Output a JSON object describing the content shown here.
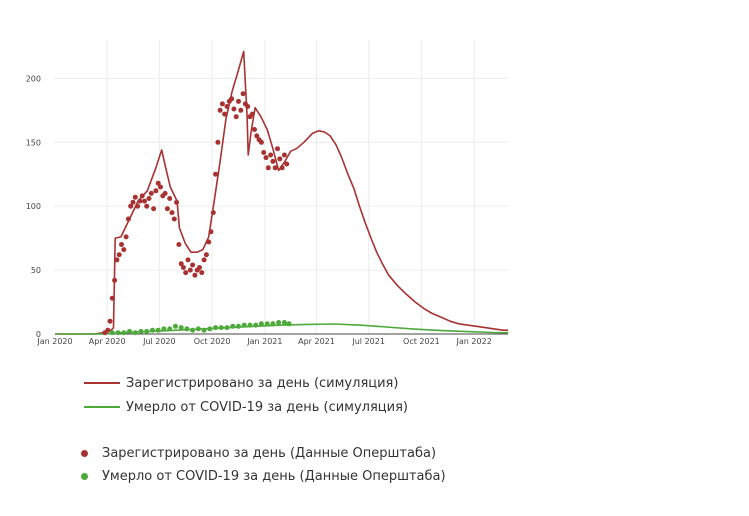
{
  "chart_data": {
    "type": "line",
    "title": "",
    "xlabel": "",
    "ylabel": "",
    "xlim": [
      "2020-01-01",
      "2022-03-01"
    ],
    "ylim": [
      0,
      230
    ],
    "grid": true,
    "legend_position": "bottom",
    "x_ticks": [
      "Jan 2020",
      "Apr 2020",
      "Jul 2020",
      "Oct 2020",
      "Jan 2021",
      "Apr 2021",
      "Jul 2021",
      "Oct 2021",
      "Jan 2022"
    ],
    "y_ticks": [
      "0",
      "50",
      "100",
      "150",
      "200"
    ],
    "series": [
      {
        "name": "Зарегистрировано за день (симуляция)",
        "kind": "line",
        "color": "#a83232",
        "x": [
          "2020-01-01",
          "2020-03-10",
          "2020-03-25",
          "2020-04-08",
          "2020-04-12",
          "2020-04-15",
          "2020-04-25",
          "2020-05-10",
          "2020-05-25",
          "2020-06-10",
          "2020-06-25",
          "2020-07-05",
          "2020-07-12",
          "2020-07-20",
          "2020-08-01",
          "2020-08-05",
          "2020-08-15",
          "2020-08-25",
          "2020-09-05",
          "2020-09-15",
          "2020-09-25",
          "2020-10-05",
          "2020-10-15",
          "2020-10-25",
          "2020-11-05",
          "2020-11-15",
          "2020-11-25",
          "2020-12-01",
          "2020-12-03",
          "2020-12-08",
          "2020-12-15",
          "2020-12-25",
          "2021-01-05",
          "2021-01-15",
          "2021-01-25",
          "2021-02-05",
          "2021-02-15",
          "2021-02-25",
          "2021-03-10",
          "2021-03-25",
          "2021-04-05",
          "2021-04-15",
          "2021-04-25",
          "2021-05-05",
          "2021-05-15",
          "2021-05-25",
          "2021-06-05",
          "2021-06-15",
          "2021-06-25",
          "2021-07-05",
          "2021-07-15",
          "2021-07-25",
          "2021-08-05",
          "2021-08-20",
          "2021-09-05",
          "2021-09-20",
          "2021-10-05",
          "2021-10-20",
          "2021-11-05",
          "2021-11-20",
          "2021-12-05",
          "2021-12-20",
          "2022-01-05",
          "2022-01-20",
          "2022-02-05",
          "2022-02-20",
          "2022-03-01"
        ],
        "y": [
          0,
          0,
          1,
          3,
          5,
          75,
          76,
          90,
          104,
          112,
          130,
          144,
          130,
          115,
          104,
          83,
          71,
          64,
          64,
          66,
          76,
          105,
          135,
          168,
          190,
          205,
          221,
          170,
          140,
          158,
          177,
          170,
          160,
          145,
          128,
          135,
          143,
          145,
          150,
          157,
          159,
          158,
          155,
          148,
          138,
          126,
          114,
          100,
          87,
          75,
          64,
          55,
          46,
          38,
          31,
          25,
          20,
          16,
          13,
          10,
          8,
          7,
          6,
          5,
          4,
          3,
          3
        ]
      },
      {
        "name": "Умерло от COVID-19 за день (симуляция)",
        "kind": "line",
        "color": "#4daa3a",
        "x": [
          "2020-01-01",
          "2020-03-20",
          "2020-05-01",
          "2020-06-15",
          "2020-08-01",
          "2020-09-15",
          "2020-11-01",
          "2020-12-15",
          "2021-02-01",
          "2021-03-15",
          "2021-05-01",
          "2021-06-15",
          "2021-08-01",
          "2021-09-15",
          "2021-11-01",
          "2021-12-15",
          "2022-02-01",
          "2022-03-01"
        ],
        "y": [
          0,
          0,
          1,
          2,
          3,
          4,
          5,
          6,
          7,
          7.5,
          7.8,
          7,
          5.5,
          4,
          2.8,
          2,
          1.2,
          1
        ]
      },
      {
        "name": "Зарегистрировано за день (Данные Оперштаба)",
        "kind": "scatter",
        "color": "#a83232",
        "x": [
          "2020-03-28",
          "2020-04-02",
          "2020-04-06",
          "2020-04-10",
          "2020-04-14",
          "2020-04-18",
          "2020-04-22",
          "2020-04-26",
          "2020-04-30",
          "2020-05-04",
          "2020-05-08",
          "2020-05-12",
          "2020-05-16",
          "2020-05-20",
          "2020-05-24",
          "2020-05-28",
          "2020-06-01",
          "2020-06-05",
          "2020-06-09",
          "2020-06-13",
          "2020-06-17",
          "2020-06-21",
          "2020-06-25",
          "2020-06-29",
          "2020-07-03",
          "2020-07-07",
          "2020-07-11",
          "2020-07-15",
          "2020-07-19",
          "2020-07-23",
          "2020-07-27",
          "2020-07-31",
          "2020-08-04",
          "2020-08-08",
          "2020-08-12",
          "2020-08-16",
          "2020-08-20",
          "2020-08-24",
          "2020-08-28",
          "2020-09-01",
          "2020-09-05",
          "2020-09-09",
          "2020-09-13",
          "2020-09-17",
          "2020-09-21",
          "2020-09-25",
          "2020-09-29",
          "2020-10-03",
          "2020-10-07",
          "2020-10-11",
          "2020-10-15",
          "2020-10-19",
          "2020-10-23",
          "2020-10-27",
          "2020-10-31",
          "2020-11-04",
          "2020-11-08",
          "2020-11-12",
          "2020-11-16",
          "2020-11-20",
          "2020-11-24",
          "2020-11-28",
          "2020-12-02",
          "2020-12-06",
          "2020-12-10",
          "2020-12-14",
          "2020-12-18",
          "2020-12-22",
          "2020-12-26",
          "2020-12-30",
          "2021-01-03",
          "2021-01-07",
          "2021-01-11",
          "2021-01-15",
          "2021-01-19",
          "2021-01-23",
          "2021-01-27",
          "2021-01-31",
          "2021-02-04",
          "2021-02-08"
        ],
        "y": [
          1,
          3,
          10,
          28,
          42,
          58,
          62,
          70,
          66,
          76,
          90,
          100,
          103,
          107,
          100,
          104,
          108,
          104,
          100,
          106,
          110,
          98,
          112,
          118,
          115,
          108,
          110,
          98,
          106,
          95,
          90,
          103,
          70,
          55,
          52,
          48,
          58,
          50,
          54,
          46,
          50,
          52,
          48,
          58,
          62,
          72,
          80,
          95,
          125,
          150,
          175,
          180,
          172,
          178,
          182,
          184,
          176,
          170,
          182,
          175,
          188,
          180,
          178,
          170,
          172,
          160,
          155,
          152,
          150,
          142,
          138,
          130,
          140,
          135,
          130,
          145,
          137,
          130,
          140,
          133
        ]
      },
      {
        "name": "Умерло от COVID-19 за день (Данные Оперштаба)",
        "kind": "scatter",
        "color": "#4daa3a",
        "x": [
          "2020-04-10",
          "2020-04-20",
          "2020-04-30",
          "2020-05-10",
          "2020-05-20",
          "2020-05-30",
          "2020-06-09",
          "2020-06-19",
          "2020-06-29",
          "2020-07-09",
          "2020-07-19",
          "2020-07-29",
          "2020-08-08",
          "2020-08-18",
          "2020-08-28",
          "2020-09-07",
          "2020-09-17",
          "2020-09-27",
          "2020-10-07",
          "2020-10-17",
          "2020-10-27",
          "2020-11-06",
          "2020-11-16",
          "2020-11-26",
          "2020-12-06",
          "2020-12-16",
          "2020-12-26",
          "2021-01-05",
          "2021-01-15",
          "2021-01-25",
          "2021-02-04",
          "2021-02-12"
        ],
        "y": [
          1,
          1,
          1,
          2,
          1,
          2,
          2,
          3,
          3,
          4,
          4,
          6,
          5,
          4,
          3,
          4,
          3,
          4,
          5,
          5,
          5,
          6,
          6,
          7,
          7,
          7,
          8,
          8,
          8,
          9,
          9,
          8
        ]
      }
    ]
  }
}
